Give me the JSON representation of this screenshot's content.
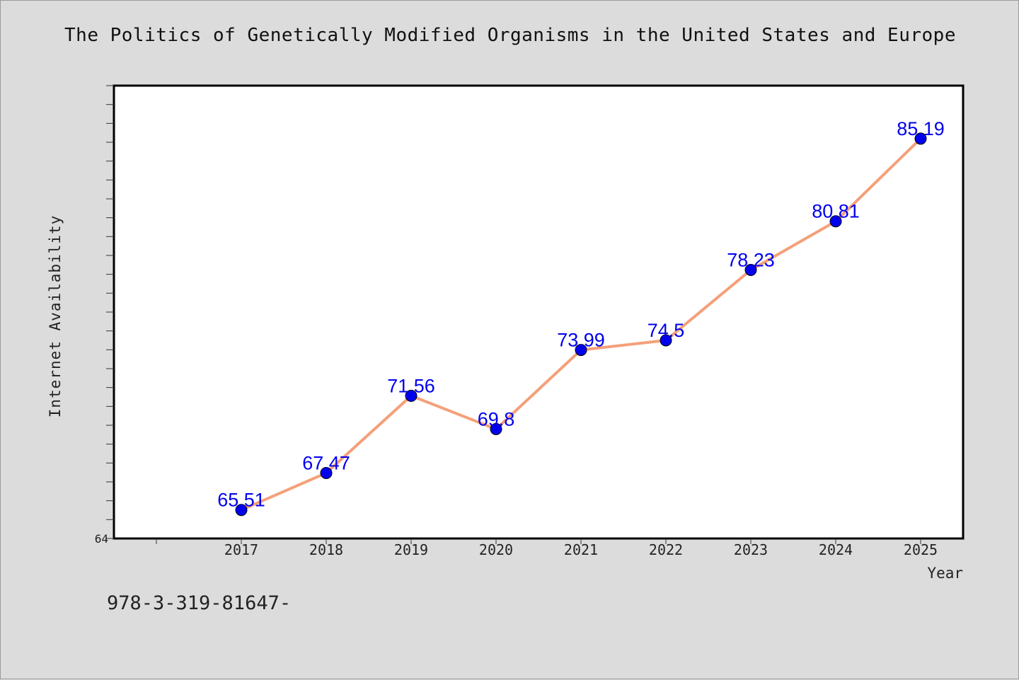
{
  "title": "The Politics of Genetically Modified Organisms in the United States and Europe",
  "footer_text": "978-3-319-81647-",
  "colors": {
    "background": "#dcdcdc",
    "plot_background": "#ffffff",
    "line": "#f4a07a",
    "marker": "#0000ee",
    "data_label": "#0000ee"
  },
  "chart_data": {
    "type": "line",
    "title": "The Politics of Genetically Modified Organisms in the United States and Europe",
    "xlabel": "Year",
    "ylabel": "Internet Availability",
    "categories": [
      "2017",
      "2018",
      "2019",
      "2020",
      "2021",
      "2022",
      "2023",
      "2024",
      "2025"
    ],
    "series": [
      {
        "values": [
          65.51,
          67.47,
          71.56,
          69.8,
          73.99,
          74.5,
          78.23,
          80.81,
          85.19
        ]
      }
    ],
    "data_labels": [
      "65.51",
      "67.47",
      "71.56",
      "69.8",
      "73.99",
      "74.5",
      "78.23",
      "80.81",
      "85.19"
    ],
    "ytick_labels": [
      "64"
    ],
    "ylim": [
      64,
      88
    ],
    "grid": false,
    "legend": "none"
  }
}
